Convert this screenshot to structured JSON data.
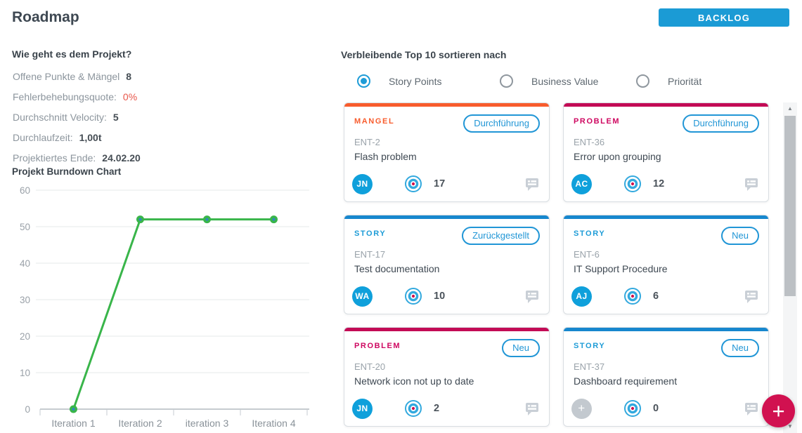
{
  "header": {
    "title": "Roadmap",
    "backlog_button": "BACKLOG"
  },
  "project_health": {
    "heading": "Wie geht es dem Projekt?",
    "stats": [
      {
        "label": "Offene Punkte & Mängel",
        "value": "8"
      },
      {
        "label": "Fehlerbehebungsquote:",
        "value": "0%"
      },
      {
        "label": "Durchschnitt Velocity:",
        "value": "5"
      },
      {
        "label": "Durchlaufzeit:",
        "value": "1,00t"
      },
      {
        "label": "Projektiertes Ende:",
        "value": "24.02.20"
      }
    ]
  },
  "chart_data": {
    "type": "line",
    "title": "Projekt Burndown Chart",
    "categories": [
      "Iteration 1",
      "Iteration 2",
      "iteration 3",
      "Iteration 4"
    ],
    "series": [
      {
        "name": "Burndown",
        "values": [
          0,
          52,
          52,
          52
        ]
      }
    ],
    "xlabel": "",
    "ylabel": "",
    "ylim": [
      0,
      60
    ],
    "ytick_step": 10,
    "grid": true,
    "legend": "none",
    "line_color": "#39b54a"
  },
  "sort_section": {
    "heading": "Verbleibende Top 10 sortieren nach",
    "options": [
      {
        "label": "Story Points",
        "selected": true
      },
      {
        "label": "Business Value",
        "selected": false
      },
      {
        "label": "Priorität",
        "selected": false
      }
    ]
  },
  "cards": [
    {
      "type": "MANGEL",
      "status": "Durchführung",
      "id": "ENT-2",
      "title": "Flash problem",
      "assignee": "JN",
      "points": "17"
    },
    {
      "type": "PROBLEM",
      "status": "Durchführung",
      "id": "ENT-36",
      "title": "Error upon grouping",
      "assignee": "AC",
      "points": "12"
    },
    {
      "type": "STORY",
      "status": "Zurückgestellt",
      "id": "ENT-17",
      "title": "Test documentation",
      "assignee": "WA",
      "points": "10"
    },
    {
      "type": "STORY",
      "status": "Neu",
      "id": "ENT-6",
      "title": "IT Support Procedure",
      "assignee": "AJ",
      "points": "6"
    },
    {
      "type": "PROBLEM",
      "status": "Neu",
      "id": "ENT-20",
      "title": "Network icon not up to date",
      "assignee": "JN",
      "points": "2"
    },
    {
      "type": "STORY",
      "status": "Neu",
      "id": "ENT-37",
      "title": "Dashboard requirement",
      "assignee": "+",
      "points": "0"
    }
  ],
  "icons": {
    "add_glyph": "+",
    "arrow_up_glyph": "▲",
    "arrow_down_glyph": "▼"
  },
  "colors": {
    "accent_blue": "#1b9bd5",
    "mangel_orange": "#f85c2d",
    "problem_crimson": "#c30b55",
    "story_blue": "#1787ce",
    "chart_green": "#39b54a",
    "error_red": "#e8564a",
    "fab_red": "#d11150",
    "avatar_blue": "#0fa0db"
  }
}
